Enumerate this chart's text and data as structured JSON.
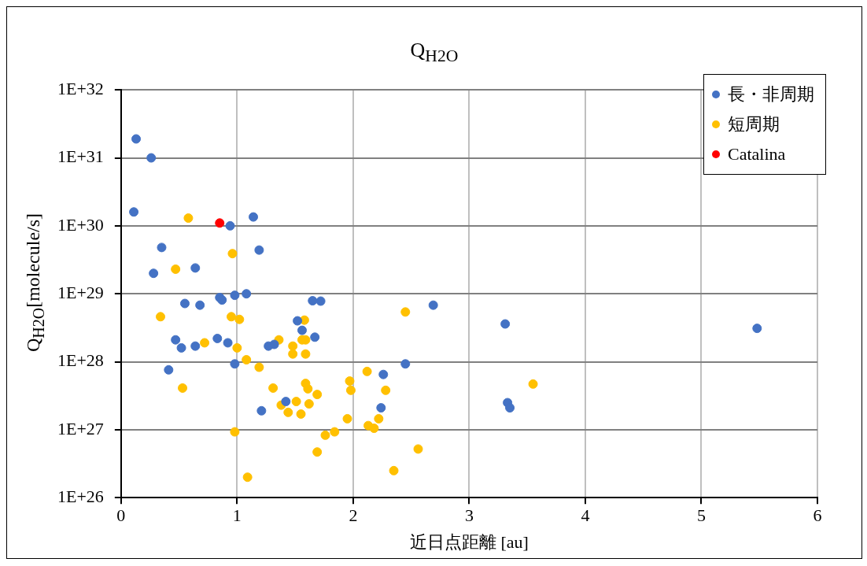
{
  "chart_data": {
    "type": "scatter",
    "title": "Q$_{H2O}$",
    "xlabel": "近日点距離 [au]",
    "ylabel": "Q$_{H2O}$[molecule/s]",
    "xlim": [
      0,
      6
    ],
    "xticks": [
      0,
      1,
      2,
      3,
      4,
      5,
      6
    ],
    "ylim": [
      1e+26,
      1e+32
    ],
    "yticks": [
      {
        "value": 1e+26,
        "label": "1E+26"
      },
      {
        "value": 1e+27,
        "label": "1E+27"
      },
      {
        "value": 1e+28,
        "label": "1E+28"
      },
      {
        "value": 1e+29,
        "label": "1E+29"
      },
      {
        "value": 1e+30,
        "label": "1E+30"
      },
      {
        "value": 1e+31,
        "label": "1E+31"
      },
      {
        "value": 1e+32,
        "label": "1E+32"
      }
    ],
    "log": "y",
    "grid": true,
    "legend": "top right",
    "marker": "circle",
    "series": [
      {
        "name": "長・非周期",
        "color": "#4472c4",
        "x": [
          0.13,
          0.26,
          0.11,
          0.94,
          1.14,
          0.35,
          1.19,
          0.28,
          0.64,
          0.55,
          0.68,
          0.85,
          0.87,
          0.98,
          1.08,
          1.65,
          1.72,
          2.69,
          3.31,
          5.48,
          1.52,
          1.56,
          1.67,
          0.47,
          0.52,
          0.64,
          0.83,
          0.92,
          1.27,
          1.32,
          0.98,
          0.41,
          2.45,
          2.26,
          1.42,
          1.21,
          2.24,
          3.33,
          3.35
        ],
        "values": [
          1.9e+31,
          1e+31,
          1.6e+30,
          1e+30,
          1.35e+30,
          4.8e+29,
          4.4e+29,
          2e+29,
          2.4e+29,
          7.2e+28,
          6.8e+28,
          8.8e+28,
          8.1e+28,
          9.5e+28,
          1e+29,
          7.9e+28,
          7.8e+28,
          6.8e+28,
          3.6e+28,
          3.1e+28,
          4e+28,
          2.9e+28,
          2.3e+28,
          2.1e+28,
          1.6e+28,
          1.7e+28,
          2.2e+28,
          1.9e+28,
          1.7e+28,
          1.8e+28,
          9.3e+27,
          7.6e+27,
          9.3e+27,
          6.5e+27,
          2.6e+27,
          1.9e+27,
          2.1e+27,
          2.5e+27,
          2.1e+27
        ]
      },
      {
        "name": "短周期",
        "color": "#ffc000",
        "x": [
          0.58,
          0.96,
          0.47,
          0.34,
          0.95,
          1.02,
          2.45,
          1.58,
          0.72,
          1.36,
          1.56,
          1.59,
          1.48,
          1.48,
          1.59,
          1.0,
          1.08,
          1.19,
          0.53,
          1.31,
          1.59,
          1.61,
          1.69,
          1.97,
          1.98,
          2.12,
          2.28,
          3.55,
          1.38,
          1.51,
          1.62,
          1.44,
          1.55,
          1.95,
          2.13,
          2.18,
          2.22,
          0.98,
          1.84,
          1.76,
          1.69,
          2.56,
          2.35,
          1.09
        ],
        "values": [
          1.3e+30,
          3.9e+29,
          2.3e+29,
          4.6e+28,
          4.6e+28,
          4.2e+28,
          5.4e+28,
          4.1e+28,
          1.9e+28,
          2.1e+28,
          2.1e+28,
          2.1e+28,
          1.7e+28,
          1.3e+28,
          1.3e+28,
          1.6e+28,
          1.07e+28,
          8.3e+27,
          4.1e+27,
          4.1e+27,
          4.8e+27,
          4e+27,
          3.3e+27,
          5.2e+27,
          3.8e+27,
          7.2e+27,
          3.8e+27,
          4.7e+27,
          2.3e+27,
          2.6e+27,
          2.4e+27,
          1.8e+27,
          1.7e+27,
          1.45e+27,
          1.15e+27,
          1.05e+27,
          1.45e+27,
          9.3e+26,
          9.3e+26,
          8.3e+26,
          4.7e+26,
          5.2e+26,
          2.5e+26,
          2e+26
        ]
      },
      {
        "name": "Catalina",
        "color": "#ff0000",
        "x": [
          0.85
        ],
        "values": [
          1.1e+30
        ]
      }
    ]
  }
}
